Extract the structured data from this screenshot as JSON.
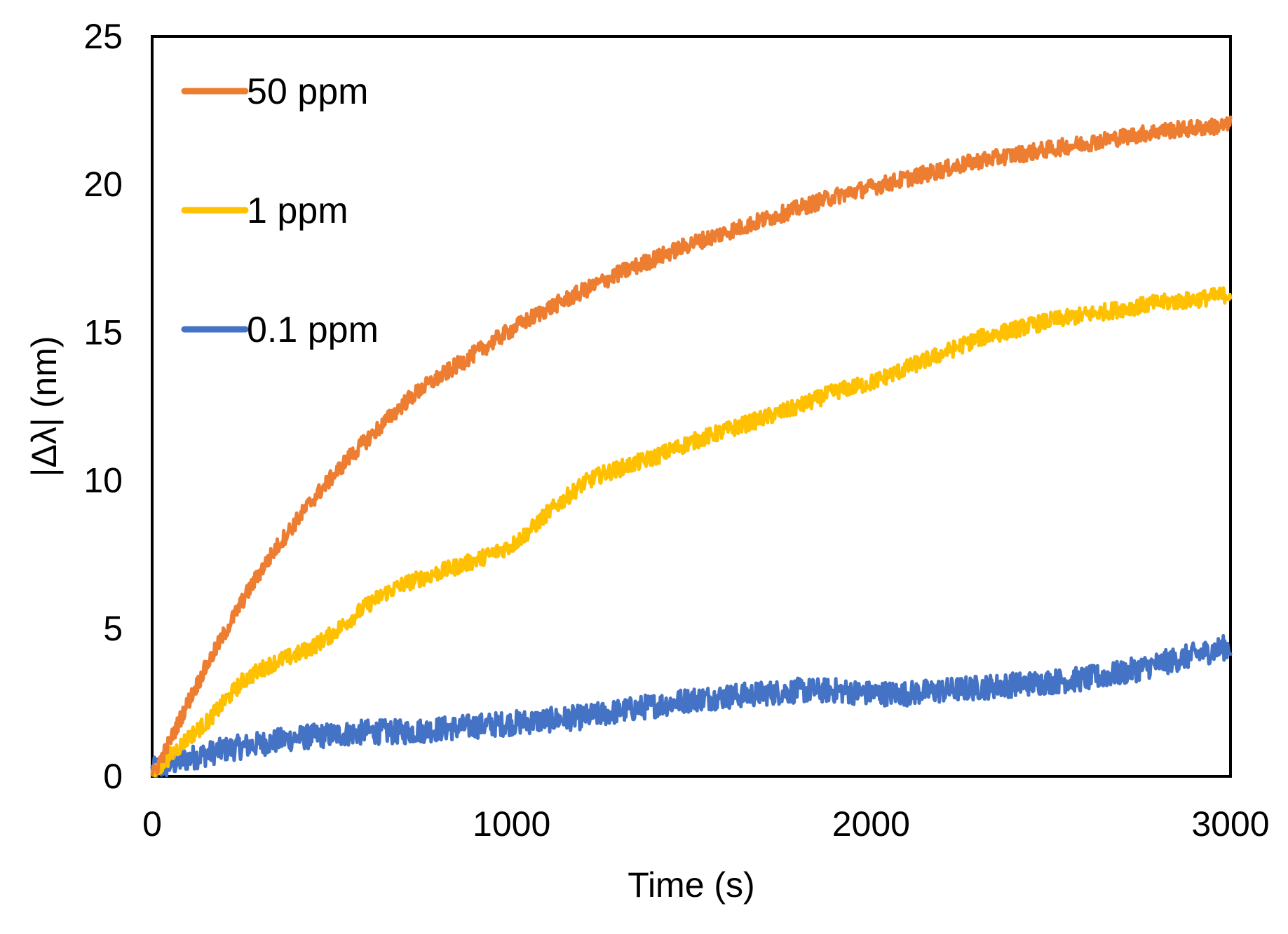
{
  "chart_data": {
    "type": "line",
    "title": "",
    "xlabel": "Time (s)",
    "ylabel": "|Δλ| (nm)",
    "xlim": [
      0,
      3000
    ],
    "ylim": [
      0,
      25
    ],
    "xticks": [
      0,
      1000,
      2000,
      3000
    ],
    "yticks": [
      0,
      5,
      10,
      15,
      20,
      25
    ],
    "xtick_labels": [
      "0",
      "1000",
      "2000",
      "3000"
    ],
    "ytick_labels": [
      "0",
      "5",
      "10",
      "15",
      "20",
      "25"
    ],
    "grid": false,
    "legend_position": "top-left",
    "series": [
      {
        "name": "50 ppm",
        "color": "#ED7D31",
        "x": [
          0,
          50,
          100,
          150,
          200,
          250,
          300,
          350,
          400,
          450,
          500,
          550,
          600,
          650,
          700,
          750,
          800,
          850,
          900,
          950,
          1000,
          1100,
          1200,
          1300,
          1400,
          1500,
          1600,
          1700,
          1800,
          1900,
          2000,
          2100,
          2200,
          2300,
          2400,
          2500,
          2600,
          2700,
          2800,
          2900,
          3000
        ],
        "y": [
          0,
          1.2,
          2.5,
          3.7,
          4.8,
          5.9,
          6.9,
          7.8,
          8.6,
          9.4,
          10.1,
          10.8,
          11.4,
          12.0,
          12.6,
          13.1,
          13.5,
          13.9,
          14.3,
          14.7,
          15.1,
          15.8,
          16.4,
          17.0,
          17.5,
          18.0,
          18.4,
          18.8,
          19.2,
          19.6,
          19.9,
          20.2,
          20.5,
          20.8,
          21.0,
          21.2,
          21.4,
          21.6,
          21.8,
          21.9,
          22.0
        ]
      },
      {
        "name": "1 ppm",
        "color": "#FFC000",
        "x": [
          0,
          50,
          100,
          150,
          200,
          250,
          300,
          350,
          400,
          450,
          500,
          550,
          600,
          650,
          700,
          750,
          800,
          900,
          1000,
          1050,
          1100,
          1150,
          1200,
          1250,
          1300,
          1400,
          1500,
          1600,
          1700,
          1800,
          1900,
          2000,
          2100,
          2200,
          2300,
          2400,
          2500,
          2600,
          2700,
          2800,
          2900,
          3000
        ],
        "y": [
          0,
          0.7,
          1.3,
          1.8,
          2.5,
          3.2,
          3.6,
          3.9,
          4.1,
          4.4,
          4.8,
          5.3,
          5.8,
          6.2,
          6.5,
          6.7,
          6.9,
          7.3,
          7.8,
          8.3,
          8.9,
          9.4,
          9.9,
          10.2,
          10.4,
          10.8,
          11.3,
          11.7,
          12.1,
          12.5,
          13.0,
          13.3,
          13.8,
          14.3,
          14.8,
          15.1,
          15.4,
          15.6,
          15.8,
          16.0,
          16.1,
          16.3
        ]
      },
      {
        "name": "0.1 ppm",
        "color": "#4472C4",
        "x": [
          0,
          100,
          200,
          300,
          400,
          500,
          600,
          700,
          800,
          900,
          1000,
          1100,
          1200,
          1300,
          1400,
          1500,
          1600,
          1700,
          1800,
          1900,
          2000,
          2100,
          2200,
          2300,
          2400,
          2500,
          2600,
          2700,
          2800,
          2900,
          3000
        ],
        "y": [
          0.2,
          0.6,
          0.9,
          1.1,
          1.3,
          1.4,
          1.5,
          1.5,
          1.6,
          1.7,
          1.8,
          1.9,
          2.0,
          2.2,
          2.4,
          2.6,
          2.7,
          2.8,
          2.9,
          2.9,
          2.8,
          2.8,
          2.9,
          3.0,
          3.1,
          3.2,
          3.3,
          3.5,
          3.8,
          4.1,
          4.4
        ]
      }
    ]
  }
}
